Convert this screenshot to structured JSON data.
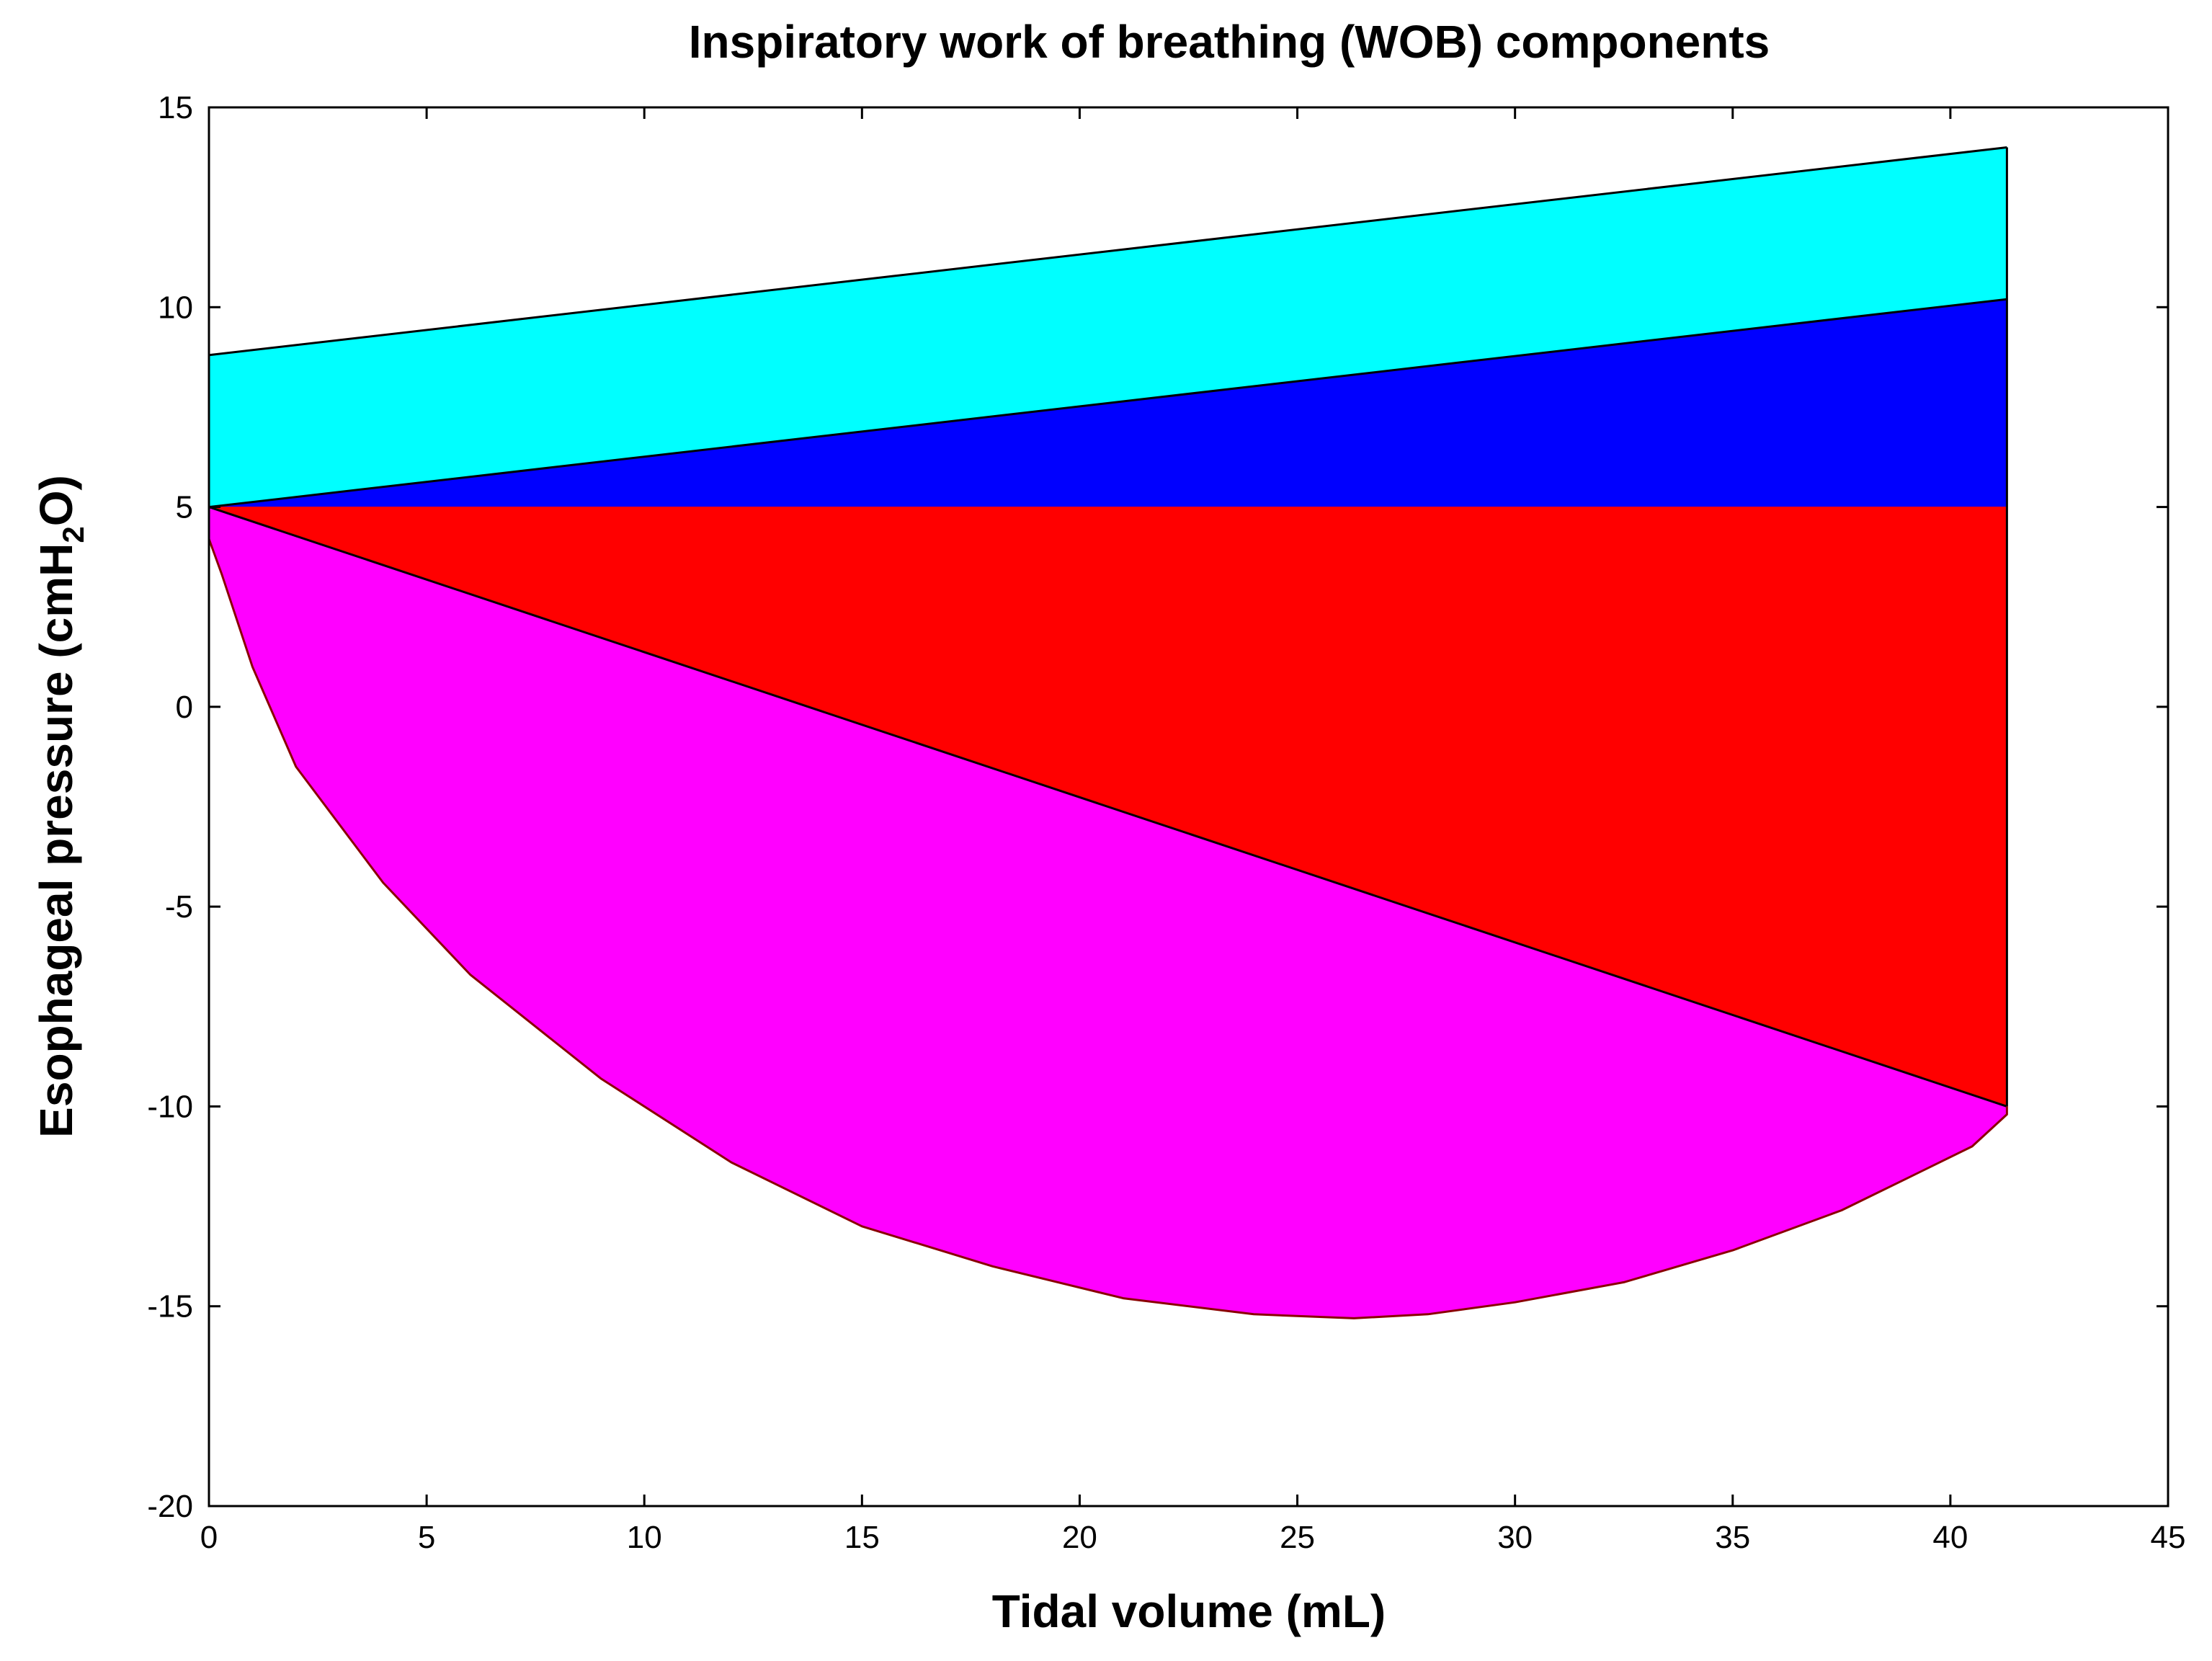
{
  "chart_data": {
    "type": "area",
    "title": "Inspiratory work of breathing (WOB) components",
    "xlabel": "Tidal volume (mL)",
    "ylabel": {
      "prefix": "Esophageal pressure (cmH",
      "subscript": "2",
      "suffix": "O)"
    },
    "xlim": [
      0,
      45
    ],
    "ylim": [
      -20,
      15
    ],
    "xticks": [
      0,
      5,
      10,
      15,
      20,
      25,
      30,
      35,
      40,
      45
    ],
    "yticks": [
      15,
      10,
      5,
      0,
      -5,
      -10,
      -15,
      -20
    ],
    "grid": false,
    "regions": [
      {
        "name": "cyan-region",
        "color": "#00ffff",
        "points": [
          [
            0,
            8.8
          ],
          [
            41.3,
            14.0
          ],
          [
            41.3,
            10.2
          ],
          [
            0,
            5.0
          ]
        ]
      },
      {
        "name": "blue-region",
        "color": "#0000ff",
        "points": [
          [
            0,
            5.0
          ],
          [
            41.3,
            10.2
          ],
          [
            41.3,
            5.0
          ]
        ]
      },
      {
        "name": "red-region",
        "color": "#ff0000",
        "points": [
          [
            0,
            5.0
          ],
          [
            41.3,
            5.0
          ],
          [
            41.3,
            -10.0
          ]
        ]
      },
      {
        "name": "magenta-region",
        "color": "#ff00ff",
        "points": [
          [
            0,
            5.0
          ],
          [
            41.3,
            -10.0
          ],
          [
            41.3,
            -10.2
          ],
          [
            40.5,
            -11.0
          ],
          [
            39.0,
            -11.8
          ],
          [
            37.5,
            -12.6
          ],
          [
            35.0,
            -13.6
          ],
          [
            32.5,
            -14.4
          ],
          [
            30.0,
            -14.9
          ],
          [
            28.0,
            -15.2
          ],
          [
            26.3,
            -15.3
          ],
          [
            24.0,
            -15.2
          ],
          [
            21.0,
            -14.8
          ],
          [
            18.0,
            -14.0
          ],
          [
            15.0,
            -13.0
          ],
          [
            12.0,
            -11.4
          ],
          [
            9.0,
            -9.3
          ],
          [
            6.0,
            -6.7
          ],
          [
            4.0,
            -4.4
          ],
          [
            2.0,
            -1.5
          ],
          [
            1.0,
            1.0
          ],
          [
            0.3,
            3.3
          ],
          [
            0,
            4.2
          ],
          [
            0,
            5.0
          ]
        ]
      }
    ],
    "lines": [
      {
        "name": "upper-boundary-line",
        "color": "#000000",
        "points": [
          [
            0,
            8.8
          ],
          [
            41.3,
            14.0
          ]
        ]
      },
      {
        "name": "cyan-blue-boundary-line",
        "color": "#000000",
        "points": [
          [
            0,
            5.0
          ],
          [
            41.3,
            10.2
          ]
        ]
      },
      {
        "name": "red-magenta-diagonal-line",
        "color": "#000000",
        "points": [
          [
            0,
            5.0
          ],
          [
            41.3,
            -10.0
          ]
        ]
      },
      {
        "name": "right-edge-line",
        "color": "#000000",
        "points": [
          [
            41.3,
            14.0
          ],
          [
            41.3,
            -10.0
          ]
        ]
      },
      {
        "name": "pressure-volume-curve",
        "color": "#8b0000",
        "points": [
          [
            0,
            5.0
          ],
          [
            0,
            4.2
          ],
          [
            0.3,
            3.3
          ],
          [
            1.0,
            1.0
          ],
          [
            2.0,
            -1.5
          ],
          [
            4.0,
            -4.4
          ],
          [
            6.0,
            -6.7
          ],
          [
            9.0,
            -9.3
          ],
          [
            12.0,
            -11.4
          ],
          [
            15.0,
            -13.0
          ],
          [
            18.0,
            -14.0
          ],
          [
            21.0,
            -14.8
          ],
          [
            24.0,
            -15.2
          ],
          [
            26.3,
            -15.3
          ],
          [
            28.0,
            -15.2
          ],
          [
            30.0,
            -14.9
          ],
          [
            32.5,
            -14.4
          ],
          [
            35.0,
            -13.6
          ],
          [
            37.5,
            -12.6
          ],
          [
            39.0,
            -11.8
          ],
          [
            40.5,
            -11.0
          ],
          [
            41.3,
            -10.2
          ],
          [
            41.3,
            -10.0
          ]
        ]
      }
    ]
  }
}
